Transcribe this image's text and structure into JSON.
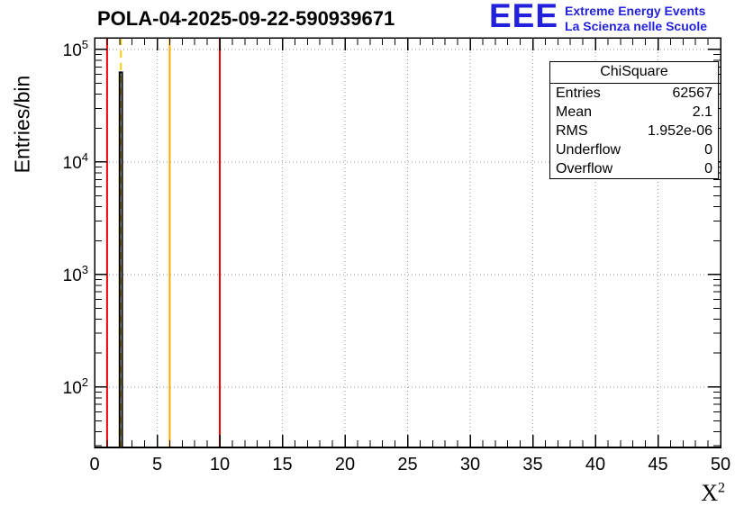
{
  "logo": {
    "text": "EEE",
    "line1": "Extreme Energy Events",
    "line2": "La Scienza nelle Scuole",
    "color": "#2222dd"
  },
  "chart_data": {
    "type": "histogram",
    "title": "POLA-04-2025-09-22-590939671",
    "xlabel_base": "X",
    "xlabel_sup": "2",
    "ylabel": "Entries/bin",
    "xlim": [
      0,
      50
    ],
    "ylim": [
      29,
      127000
    ],
    "ylog": true,
    "grid": true,
    "x_major_ticks": [
      0,
      5,
      10,
      15,
      20,
      25,
      30,
      35,
      40,
      45,
      50
    ],
    "x_minor_step": 1,
    "y_tick_exponents": [
      2,
      3,
      4,
      5
    ],
    "histogram": {
      "color": "#000000",
      "bins": [
        {
          "x0": 2.0,
          "x1": 2.2,
          "count": 62567
        }
      ]
    },
    "vlines": [
      {
        "x": 1,
        "color": "#ee0000",
        "style": "solid"
      },
      {
        "x": 2.1,
        "color": "#ffcc00",
        "style": "dashed"
      },
      {
        "x": 6,
        "color": "#ffaa00",
        "style": "solid"
      },
      {
        "x": 10,
        "color": "#ee0000",
        "style": "solid"
      }
    ],
    "stats": {
      "title": "ChiSquare",
      "rows": [
        {
          "label": "Entries",
          "value": "62567"
        },
        {
          "label": "Mean",
          "value": "2.1"
        },
        {
          "label": "RMS",
          "value": "1.952e-06"
        },
        {
          "label": "Underflow",
          "value": "0"
        },
        {
          "label": "Overflow",
          "value": "0"
        }
      ]
    }
  }
}
